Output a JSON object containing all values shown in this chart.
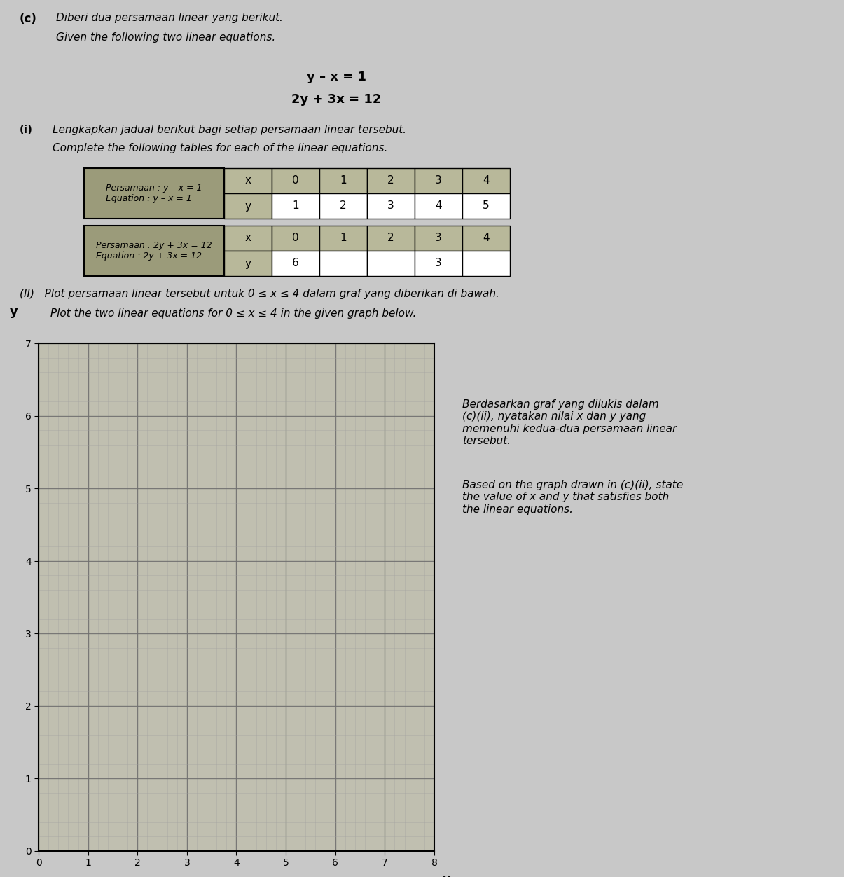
{
  "background_color": "#c8c8c8",
  "malay_text1": "Diberi dua persamaan linear yang berikut.",
  "english_text1": "Given the following two linear equations.",
  "eq1": "y – x = 1",
  "eq2": "2y + 3x = 12",
  "part_i_malay": "Lengkapkan jadual berikut bagi setiap persamaan linear tersebut.",
  "part_i_english": "Complete the following tables for each of the linear equations.",
  "table1_label": "Persamaan : y – x = 1\nEquation : y – x = 1",
  "table1_x_vals": [
    "0",
    "1",
    "2",
    "3",
    "4"
  ],
  "table1_y_vals": [
    "1",
    "2",
    "3",
    "4",
    "5"
  ],
  "table2_label": "Persamaan : 2y + 3x = 12\nEquation : 2y + 3x = 12",
  "table2_x_vals": [
    "0",
    "1",
    "2",
    "3",
    "4"
  ],
  "table2_y_vals": [
    "6",
    "",
    "",
    "3",
    ""
  ],
  "part_ii_malay": "(II)   Plot persamaan linear tersebut untuk 0 ≤ x ≤ 4 dalam graf yang diberikan di bawah.",
  "part_ii_english": "         Plot the two linear equations for 0 ≤ x ≤ 4 in the given graph below.",
  "graph_xlim": [
    0,
    8
  ],
  "graph_ylim": [
    0,
    7
  ],
  "graph_xticks": [
    0,
    1,
    2,
    3,
    4,
    5,
    6,
    7,
    8
  ],
  "graph_yticks": [
    0,
    1,
    2,
    3,
    4,
    5,
    6,
    7
  ],
  "side_text_malay": "Berdasarkan graf yang dilukis dalam\n(c)(ii), nyatakan nilai x dan y yang\nmemenuhi kedua-dua persamaan linear\ntersebut.",
  "side_text_english": "Based on the graph drawn in (c)(ii), state\nthe value of x and y that satisfies both\nthe linear equations.",
  "header_bg_color": "#9B9B7A",
  "table_x_bg": "#b8b89a",
  "table_y_bg": "#ffffff",
  "graph_bg_color": "#c0bfb0",
  "graph_grid_major": "#707070",
  "graph_grid_minor": "#a0a0a0"
}
